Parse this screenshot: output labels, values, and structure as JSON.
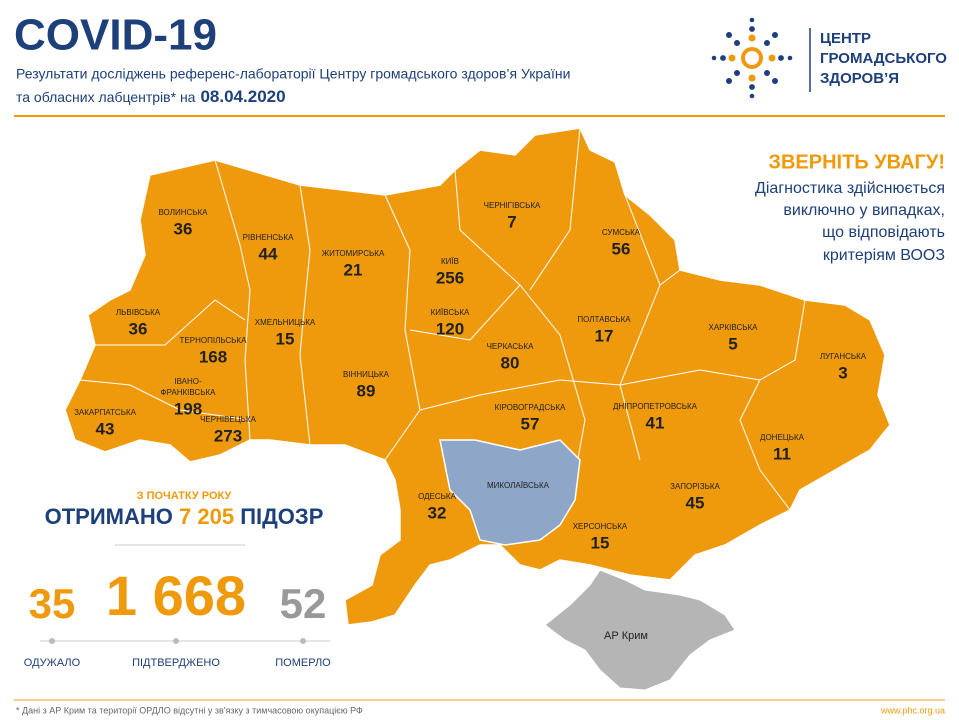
{
  "header": {
    "title": "COVID-19",
    "subtitle_line1": "Результати досліджень референс-лабораторії Центру громадського здоров’я України",
    "subtitle_line2": "та обласних лабцентрів* на",
    "date": "08.04.2020"
  },
  "logo": {
    "lines": [
      "ЦЕНТР",
      "ГРОМАДСЬКОГО",
      "ЗДОРОВ’Я"
    ]
  },
  "notice": {
    "title": "ЗВЕРНІТЬ УВАГУ!",
    "lines": [
      "Діагностика здійснюється",
      "виключно у випадках,",
      "що відповідають",
      "критеріям ВООЗ"
    ]
  },
  "regions": [
    {
      "name": "ВОЛИНСЬКА",
      "value": 36
    },
    {
      "name": "РІВНЕНСЬКА",
      "value": 44
    },
    {
      "name": "ЖИТОМИРСЬКА",
      "value": 21
    },
    {
      "name": "КИЇВ",
      "value": 256
    },
    {
      "name": "ЧЕРНІГІВСЬКА",
      "value": 7
    },
    {
      "name": "СУМСЬКА",
      "value": 56
    },
    {
      "name": "ЛЬВІВСЬКА",
      "value": 36
    },
    {
      "name": "ХМЕЛЬНИЦЬКА",
      "value": 15
    },
    {
      "name": "ТЕРНОПІЛЬСЬКА",
      "value": 168
    },
    {
      "name": "КИЇВСЬКА",
      "value": 120
    },
    {
      "name": "ЧЕРКАСЬКА",
      "value": 80
    },
    {
      "name": "ПОЛТАВСЬКА",
      "value": 17
    },
    {
      "name": "ХАРКІВСЬКА",
      "value": 5
    },
    {
      "name": "ЛУГАНСЬКА",
      "value": 3
    },
    {
      "name": "ВІННИЦЬКА",
      "value": 89
    },
    {
      "name": [
        "ІВАНО-",
        "ФРАНКІВСЬКА"
      ],
      "value": 198
    },
    {
      "name": "ЗАКАРПАТСЬКА",
      "value": 43
    },
    {
      "name": "ЧЕРНІВЕЦЬКА",
      "value": 273
    },
    {
      "name": "КІРОВОГРАДСЬКА",
      "value": 57
    },
    {
      "name": "ДНІПРОПЕТРОВСЬКА",
      "value": 41
    },
    {
      "name": "ДОНЕЦЬКА",
      "value": 11
    },
    {
      "name": "МИКОЛАЇВСЬКА"
    },
    {
      "name": "ОДЕСЬКА",
      "value": 32
    },
    {
      "name": "ЗАПОРІЗЬКА",
      "value": 45
    },
    {
      "name": "ХЕРСОНСЬКА",
      "value": 15
    }
  ],
  "crimea": "АР Крим",
  "summary": {
    "since": "З ПОЧАТКУ РОКУ",
    "received_prefix": "ОТРИМАНО",
    "received": "7 205",
    "received_suffix": "ПІДОЗР",
    "recovered": 35,
    "recovered_label": "ОДУЖАЛО",
    "confirmed": "1 668",
    "confirmed_label": "ПІДТВЕРДЖЕНО",
    "deaths": 52,
    "deaths_label": "ПОМЕРЛО"
  },
  "footnote": "* Дані з АР Крим та території ОРДЛО відсутні у зв'язку з тимчасовою окупацією РФ",
  "url": "www.phc.org.ua"
}
